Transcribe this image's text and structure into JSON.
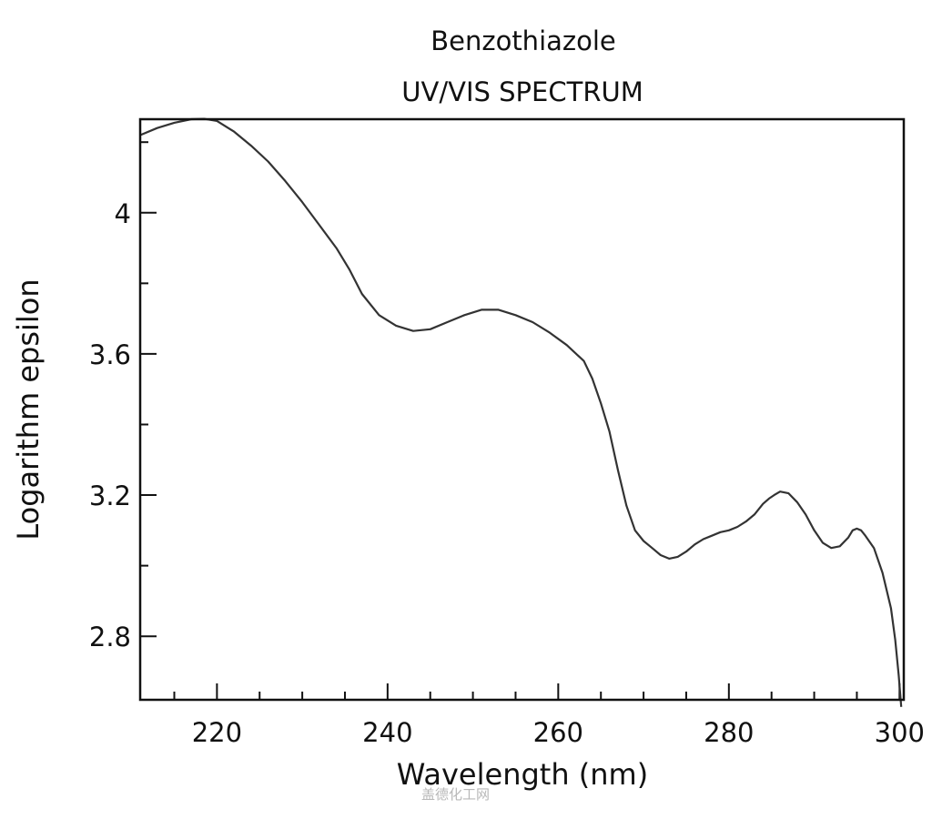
{
  "chart_data": {
    "type": "line",
    "title": "Benzothiazole",
    "subtitle": "UV/VIS SPECTRUM",
    "xlabel": "Wavelength (nm)",
    "ylabel": "Logarithm epsilon",
    "xlim": [
      211,
      300.5
    ],
    "ylim": [
      2.62,
      4.265
    ],
    "x_ticks": [
      220,
      240,
      260,
      280,
      300
    ],
    "y_ticks": [
      2.8,
      3.2,
      3.6,
      4
    ],
    "x_tick_labels": [
      "220",
      "240",
      "260",
      "280",
      "300"
    ],
    "y_tick_labels": [
      "2.8",
      "3.2",
      "3.6",
      "4"
    ],
    "x_minor_step": 5,
    "y_minor_step": 0.2,
    "grid": false,
    "series": [
      {
        "color": "#333333",
        "x": [
          211,
          213,
          215,
          217,
          218.5,
          220,
          222,
          224,
          226,
          228,
          230,
          232,
          234,
          235.5,
          237,
          239,
          241,
          243,
          245,
          247,
          249,
          251,
          253,
          255,
          257,
          259,
          261,
          263,
          264,
          265,
          266,
          267,
          268,
          269,
          270,
          271,
          272,
          273,
          274,
          275,
          276,
          277,
          278,
          279,
          280,
          281,
          282,
          283,
          284,
          284.7,
          285.3,
          286,
          287,
          288,
          289,
          290,
          291,
          292,
          293,
          294,
          294.5,
          295,
          295.5,
          296,
          297,
          298,
          299,
          299.5,
          299.9,
          300.2
        ],
        "y": [
          4.22,
          4.24,
          4.255,
          4.265,
          4.266,
          4.26,
          4.23,
          4.19,
          4.145,
          4.09,
          4.03,
          3.965,
          3.9,
          3.84,
          3.77,
          3.71,
          3.68,
          3.665,
          3.67,
          3.69,
          3.71,
          3.725,
          3.725,
          3.71,
          3.69,
          3.66,
          3.625,
          3.58,
          3.53,
          3.46,
          3.38,
          3.27,
          3.17,
          3.1,
          3.07,
          3.05,
          3.03,
          3.02,
          3.025,
          3.04,
          3.06,
          3.075,
          3.085,
          3.095,
          3.1,
          3.11,
          3.125,
          3.145,
          3.175,
          3.19,
          3.2,
          3.21,
          3.205,
          3.18,
          3.145,
          3.1,
          3.065,
          3.05,
          3.055,
          3.08,
          3.1,
          3.105,
          3.1,
          3.085,
          3.05,
          2.98,
          2.88,
          2.79,
          2.69,
          2.6
        ]
      }
    ]
  },
  "watermark": "盖德化工网"
}
